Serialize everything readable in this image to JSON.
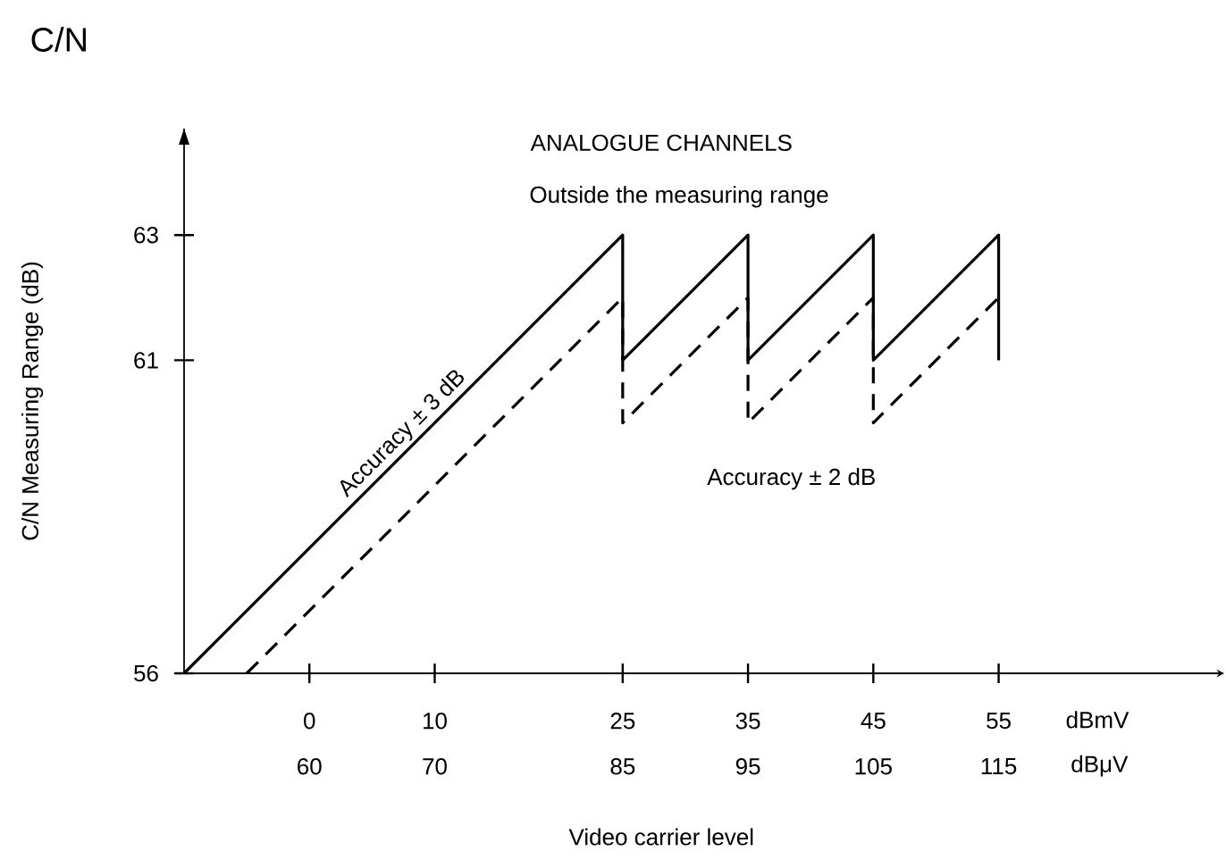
{
  "chart_data": {
    "type": "line",
    "title": "ANALOGUE CHANNELS",
    "xlabel": "Video carrier level",
    "ylabel": "C/N Measuring Range  (dB)",
    "annotations": [
      "C/N",
      "Outside the measuring range",
      "Accuracy  ± 2 dB",
      "Accuracy  ± 3 dB",
      "dBmV",
      "dBμV"
    ],
    "xlim": [
      -10,
      73
    ],
    "xticks": [
      0,
      10,
      25,
      35,
      45,
      55
    ],
    "x2lim": [
      50,
      133
    ],
    "x2ticks": [
      60,
      70,
      85,
      95,
      105,
      115
    ],
    "ylim": [
      56,
      64.7
    ],
    "yticks": [
      56,
      61,
      63
    ],
    "grid": false,
    "series": [
      {
        "color": "#000000",
        "line_style": "solid",
        "x": [
          -10,
          25,
          25,
          35,
          35,
          45,
          45,
          55,
          55
        ],
        "values": [
          56,
          63,
          61,
          63,
          61,
          63,
          61,
          63,
          61
        ]
      },
      {
        "color": "#000000",
        "line_style": "dashed",
        "x": [
          -5,
          25,
          25,
          35,
          35,
          45,
          45,
          55
        ],
        "values": [
          56,
          62,
          60,
          62,
          60,
          62,
          60,
          62
        ]
      }
    ]
  }
}
